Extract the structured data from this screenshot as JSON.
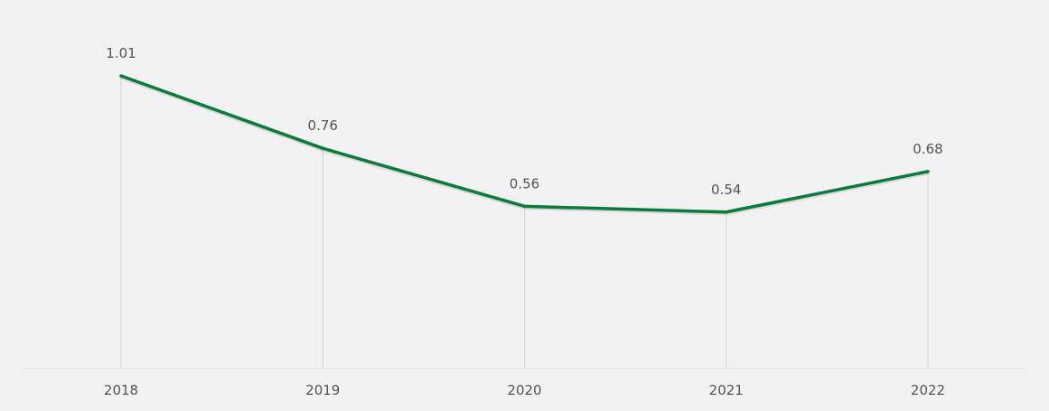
{
  "colors": {
    "background": "#f2f2f2",
    "series_line": "#0b7a3b",
    "gridline": "#d6d6d6",
    "text": "#555555"
  },
  "chart_data": {
    "type": "line",
    "categories": [
      "2018",
      "2019",
      "2020",
      "2021",
      "2022"
    ],
    "series": [
      {
        "values": [
          1.01,
          0.76,
          0.56,
          0.54,
          0.68
        ]
      }
    ],
    "data_labels": [
      "1.01",
      "0.76",
      "0.56",
      "0.54",
      "0.68"
    ],
    "ylim": [
      0,
      1.24
    ],
    "grid": "vertical",
    "legend": "none"
  }
}
